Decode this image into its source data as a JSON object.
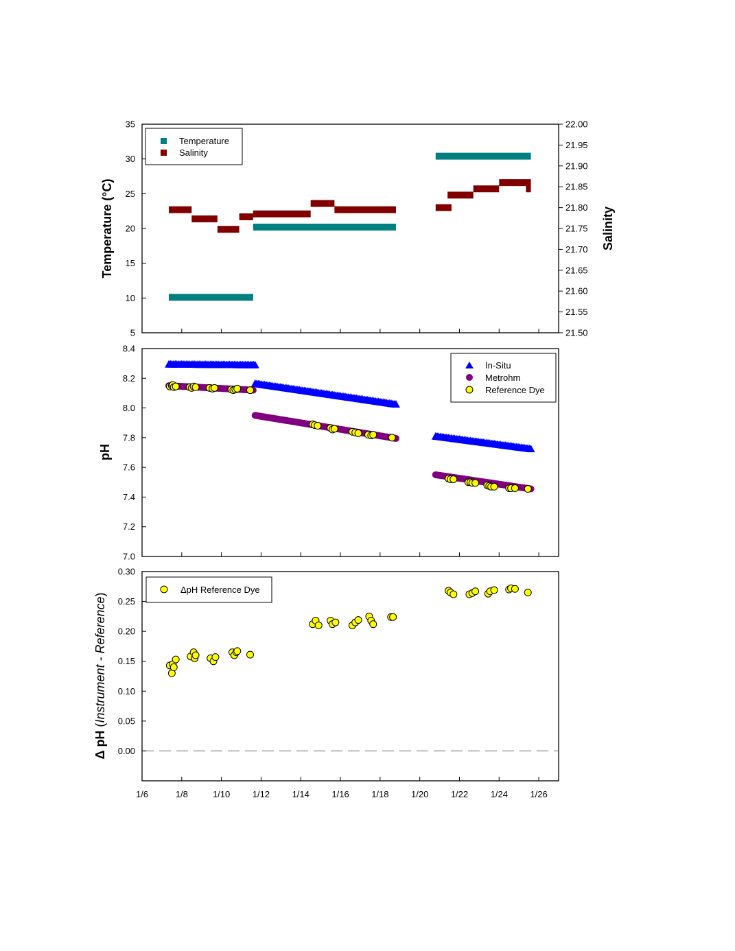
{
  "x_axis": {
    "ticks": [
      {
        "day": 6,
        "label": "1/6"
      },
      {
        "day": 8,
        "label": "1/8"
      },
      {
        "day": 10,
        "label": "1/10"
      },
      {
        "day": 12,
        "label": "1/12"
      },
      {
        "day": 14,
        "label": "1/14"
      },
      {
        "day": 16,
        "label": "1/16"
      },
      {
        "day": 18,
        "label": "1/18"
      },
      {
        "day": 20,
        "label": "1/20"
      },
      {
        "day": 22,
        "label": "1/22"
      },
      {
        "day": 24,
        "label": "1/24"
      },
      {
        "day": 26,
        "label": "1/26"
      }
    ],
    "range_days": [
      6,
      27
    ]
  },
  "colors": {
    "temperature": "#008080",
    "salinity": "#800000",
    "insitu": "#0000ff",
    "metrohm": "#800080",
    "dye": "#ffff00",
    "zero_line": "#a0a0a0"
  },
  "chart_data": [
    {
      "type": "scatter",
      "x_unit": "day of January",
      "ylabel": "Temperature (°C)",
      "y2label": "Salinity",
      "ylim": [
        5,
        35
      ],
      "yticks": [
        "5",
        "10",
        "15",
        "20",
        "25",
        "30",
        "35"
      ],
      "y2lim": [
        21.5,
        22.0
      ],
      "y2ticks": [
        "21.50",
        "21.55",
        "21.60",
        "21.65",
        "21.70",
        "21.75",
        "21.80",
        "21.85",
        "21.90",
        "21.95",
        "22.00"
      ],
      "legend_position": "top-left",
      "series": [
        {
          "name": "Temperature",
          "axis": "left",
          "segments": [
            {
              "x_start": 7.35,
              "x_end": 11.6,
              "y": 10.1
            },
            {
              "x_start": 11.6,
              "x_end": 18.8,
              "y": 20.2
            },
            {
              "x_start": 20.8,
              "x_end": 25.6,
              "y": 30.4
            }
          ]
        },
        {
          "name": "Salinity",
          "axis": "right",
          "segments": [
            {
              "x_start": 7.35,
              "x_end": 8.5,
              "y": 21.795
            },
            {
              "x_start": 8.5,
              "x_end": 9.8,
              "y": 21.773
            },
            {
              "x_start": 9.8,
              "x_end": 10.9,
              "y": 21.748
            },
            {
              "x_start": 10.9,
              "x_end": 11.6,
              "y": 21.778
            },
            {
              "x_start": 11.6,
              "x_end": 14.5,
              "y": 21.785
            },
            {
              "x_start": 14.5,
              "x_end": 15.7,
              "y": 21.81
            },
            {
              "x_start": 15.7,
              "x_end": 18.8,
              "y": 21.795
            },
            {
              "x_start": 20.8,
              "x_end": 21.6,
              "y": 21.8
            },
            {
              "x_start": 21.4,
              "x_end": 22.7,
              "y": 21.83
            },
            {
              "x_start": 22.7,
              "x_end": 24.0,
              "y": 21.845
            },
            {
              "x_start": 24.0,
              "x_end": 25.6,
              "y": 21.86
            },
            {
              "x_start": 25.35,
              "x_end": 25.6,
              "y": 21.845
            }
          ]
        }
      ]
    },
    {
      "type": "scatter",
      "x_unit": "day of January",
      "ylabel": "pH",
      "ylim": [
        7.0,
        8.4
      ],
      "yticks": [
        "7.0",
        "7.2",
        "7.4",
        "7.6",
        "7.8",
        "8.0",
        "8.2",
        "8.4"
      ],
      "legend_position": "top-right",
      "series": [
        {
          "name": "In-Situ",
          "marker": "triangle",
          "segments": [
            {
              "x_start": 7.35,
              "x_end": 11.7,
              "y_start": 8.295,
              "y_end": 8.29
            },
            {
              "x_start": 11.7,
              "x_end": 18.8,
              "y_start": 8.165,
              "y_end": 8.025
            },
            {
              "x_start": 20.8,
              "x_end": 25.6,
              "y_start": 7.81,
              "y_end": 7.725
            }
          ]
        },
        {
          "name": "Metrohm",
          "marker": "circle",
          "segments": [
            {
              "x_start": 7.35,
              "x_end": 11.6,
              "y_start": 8.15,
              "y_end": 8.12
            },
            {
              "x_start": 11.7,
              "x_end": 18.8,
              "y_start": 7.95,
              "y_end": 7.795
            },
            {
              "x_start": 20.8,
              "x_end": 25.6,
              "y_start": 7.55,
              "y_end": 7.455
            }
          ]
        },
        {
          "name": "Reference Dye",
          "marker": "circle",
          "points": [
            [
              7.4,
              8.145
            ],
            [
              7.5,
              8.15
            ],
            [
              7.55,
              8.155
            ],
            [
              7.6,
              8.14
            ],
            [
              7.7,
              8.145
            ],
            [
              8.4,
              8.14
            ],
            [
              8.5,
              8.135
            ],
            [
              8.6,
              8.145
            ],
            [
              8.7,
              8.14
            ],
            [
              9.4,
              8.135
            ],
            [
              9.55,
              8.13
            ],
            [
              9.65,
              8.135
            ],
            [
              10.5,
              8.125
            ],
            [
              10.6,
              8.12
            ],
            [
              10.7,
              8.125
            ],
            [
              10.8,
              8.13
            ],
            [
              11.45,
              8.12
            ],
            [
              14.6,
              7.89
            ],
            [
              14.7,
              7.885
            ],
            [
              14.85,
              7.88
            ],
            [
              15.5,
              7.865
            ],
            [
              15.6,
              7.855
            ],
            [
              15.7,
              7.86
            ],
            [
              16.6,
              7.84
            ],
            [
              16.75,
              7.835
            ],
            [
              16.9,
              7.83
            ],
            [
              17.4,
              7.82
            ],
            [
              17.55,
              7.815
            ],
            [
              17.65,
              7.82
            ],
            [
              18.6,
              7.8
            ],
            [
              21.45,
              7.525
            ],
            [
              21.55,
              7.52
            ],
            [
              21.7,
              7.52
            ],
            [
              22.45,
              7.5
            ],
            [
              22.55,
              7.5
            ],
            [
              22.65,
              7.495
            ],
            [
              22.8,
              7.495
            ],
            [
              23.4,
              7.48
            ],
            [
              23.5,
              7.475
            ],
            [
              23.6,
              7.47
            ],
            [
              23.75,
              7.47
            ],
            [
              24.5,
              7.46
            ],
            [
              24.6,
              7.46
            ],
            [
              24.8,
              7.46
            ],
            [
              25.45,
              7.455
            ]
          ]
        }
      ]
    },
    {
      "type": "scatter",
      "x_unit": "day of January",
      "ylabel_parts": [
        "Δ pH ",
        "(",
        "Instrument - Reference",
        ")"
      ],
      "ylim": [
        -0.05,
        0.3
      ],
      "yticks": [
        "0.00",
        "0.05",
        "0.10",
        "0.15",
        "0.20",
        "0.25",
        "0.30"
      ],
      "zero_line": true,
      "legend_position": "top-left",
      "series": [
        {
          "name": "ΔpH Reference Dye",
          "marker": "circle",
          "points": [
            [
              7.4,
              0.143
            ],
            [
              7.5,
              0.13
            ],
            [
              7.55,
              0.145
            ],
            [
              7.6,
              0.14
            ],
            [
              7.7,
              0.153
            ],
            [
              8.45,
              0.158
            ],
            [
              8.6,
              0.165
            ],
            [
              8.65,
              0.155
            ],
            [
              8.7,
              0.16
            ],
            [
              9.45,
              0.155
            ],
            [
              9.6,
              0.15
            ],
            [
              9.7,
              0.157
            ],
            [
              10.55,
              0.165
            ],
            [
              10.65,
              0.16
            ],
            [
              10.75,
              0.165
            ],
            [
              10.8,
              0.167
            ],
            [
              11.45,
              0.161
            ],
            [
              14.6,
              0.212
            ],
            [
              14.75,
              0.218
            ],
            [
              14.9,
              0.21
            ],
            [
              15.5,
              0.218
            ],
            [
              15.6,
              0.212
            ],
            [
              15.75,
              0.215
            ],
            [
              16.6,
              0.21
            ],
            [
              16.75,
              0.215
            ],
            [
              16.9,
              0.219
            ],
            [
              17.45,
              0.225
            ],
            [
              17.55,
              0.218
            ],
            [
              17.65,
              0.212
            ],
            [
              18.55,
              0.224
            ],
            [
              18.65,
              0.224
            ],
            [
              21.45,
              0.268
            ],
            [
              21.55,
              0.265
            ],
            [
              21.7,
              0.262
            ],
            [
              22.5,
              0.262
            ],
            [
              22.65,
              0.264
            ],
            [
              22.8,
              0.267
            ],
            [
              23.45,
              0.263
            ],
            [
              23.55,
              0.267
            ],
            [
              23.75,
              0.269
            ],
            [
              24.5,
              0.27
            ],
            [
              24.6,
              0.272
            ],
            [
              24.8,
              0.271
            ],
            [
              25.45,
              0.265
            ]
          ]
        }
      ]
    }
  ]
}
